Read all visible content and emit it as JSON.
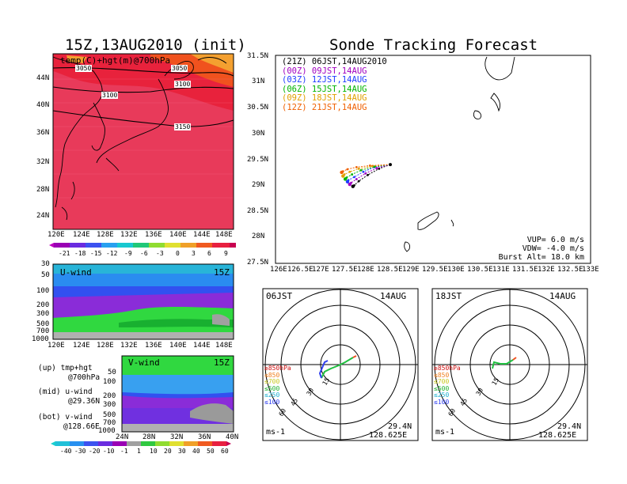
{
  "left_title": "15Z,13AUG2010 (init)",
  "right_title": "Sonde Tracking Forecast",
  "map_small": {
    "label": "temp(C)+hgt(m)@700hPa",
    "lat_ticks": [
      "44N",
      "40N",
      "36N",
      "32N",
      "28N",
      "24N"
    ],
    "lon_ticks": [
      "120E",
      "124E",
      "128E",
      "132E",
      "136E",
      "140E",
      "144E",
      "148E"
    ],
    "contours": [
      "3050",
      "3050",
      "3100",
      "3100",
      "3150"
    ]
  },
  "temp_colorbar": [
    "-21",
    "-18",
    "-15",
    "-12",
    "-9",
    "-6",
    "-3",
    "0",
    "3",
    "6",
    "9"
  ],
  "uwind": {
    "label": "U-wind",
    "time": "15Z",
    "p_ticks": [
      "30",
      "50",
      "100",
      "200",
      "300",
      "500",
      "700",
      "1000"
    ],
    "lon_ticks": [
      "120E",
      "124E",
      "128E",
      "132E",
      "136E",
      "140E",
      "144E",
      "148E"
    ]
  },
  "vwind": {
    "label": "V-wind",
    "time": "15Z",
    "p_ticks": [
      "50",
      "100",
      "200",
      "300",
      "500",
      "700",
      "1000"
    ],
    "lat_ticks": [
      "24N",
      "28N",
      "32N",
      "36N",
      "40N"
    ]
  },
  "side_notes": [
    [
      "(up) tmp+hgt",
      "@700hPa"
    ],
    [
      "(mid) u-wind",
      "@29.36N"
    ],
    [
      "(bot) v-wind",
      "@128.66E"
    ]
  ],
  "wind_colorbar": [
    "-40",
    "-30",
    "-20",
    "-10",
    "-1",
    "1",
    "10",
    "20",
    "30",
    "40",
    "50",
    "60"
  ],
  "track_map": {
    "lat_ticks": [
      "31.5N",
      "31N",
      "30.5N",
      "30N",
      "29.5N",
      "29N",
      "28.5N",
      "28N",
      "27.5N"
    ],
    "lon_ticks": [
      "126E",
      "126.5E",
      "127E",
      "127.5E",
      "128E",
      "128.5E",
      "129E",
      "129.5E",
      "130E",
      "130.5E",
      "131E",
      "131.5E",
      "132E",
      "132.5E",
      "133E"
    ],
    "legend": [
      {
        "text": "(21Z)  06JST,14AUG2010",
        "color": "#000000"
      },
      {
        "text": "(00Z)  09JST,14AUG",
        "color": "#a000c0"
      },
      {
        "text": "(03Z)  12JST,14AUG",
        "color": "#1e3cff"
      },
      {
        "text": "(06Z)  15JST,14AUG",
        "color": "#00b400"
      },
      {
        "text": "(09Z)  18JST,14AUG",
        "color": "#e0a000"
      },
      {
        "text": "(12Z)  21JST,14AUG",
        "color": "#f06000"
      }
    ],
    "params": [
      "VUP=  6.0  m/s",
      "VDW= -4.0  m/s",
      "Burst Alt=  18.0  km"
    ]
  },
  "hodo_left": {
    "time": "06JST",
    "date": "14AUG",
    "rings": [
      "15",
      "30",
      "45",
      "60"
    ],
    "levels": [
      "≥850hPa",
      "≤850",
      "≤700",
      "≤500",
      "≤250",
      "≤100"
    ],
    "unit": "ms-1",
    "lat": "29.4N",
    "lon": "128.625E"
  },
  "hodo_right": {
    "time": "18JST",
    "date": "14AUG",
    "rings": [
      "15",
      "30",
      "45",
      "60"
    ],
    "levels": [
      "≥850hPa",
      "≤850",
      "≤700",
      "≤500",
      "≤250",
      "≤100"
    ],
    "unit": "ms-1",
    "lat": "29.4N",
    "lon": "128.625E"
  },
  "chart_data": {
    "type": "line",
    "title": "Sonde Tracking Forecast",
    "xlim": [
      126,
      133
    ],
    "ylim": [
      27.5,
      31.5
    ],
    "burst_point": [
      128.55,
      29.4
    ],
    "series": [
      {
        "name": "(21Z)  06JST,14AUG2010",
        "color": "#000000",
        "x": [
          128.55,
          128.3,
          128.05,
          127.85,
          127.75,
          127.72
        ],
        "y": [
          29.4,
          29.32,
          29.2,
          29.08,
          29.0,
          28.98
        ]
      },
      {
        "name": "(00Z)  09JST,14AUG",
        "color": "#a000c0",
        "x": [
          128.55,
          128.25,
          128.0,
          127.8,
          127.68,
          127.65
        ],
        "y": [
          29.4,
          29.33,
          29.23,
          29.12,
          29.05,
          29.02
        ]
      },
      {
        "name": "(03Z)  12JST,14AUG",
        "color": "#1e3cff",
        "x": [
          128.55,
          128.2,
          127.95,
          127.75,
          127.62,
          127.6
        ],
        "y": [
          29.4,
          29.35,
          29.26,
          29.16,
          29.1,
          29.07
        ]
      },
      {
        "name": "(06Z)  15JST,14AUG",
        "color": "#00b400",
        "x": [
          128.55,
          128.2,
          127.9,
          127.7,
          127.58,
          127.55
        ],
        "y": [
          29.4,
          29.36,
          29.29,
          29.21,
          29.15,
          29.12
        ]
      },
      {
        "name": "(09Z)  18JST,14AUG",
        "color": "#e0a000",
        "x": [
          128.55,
          128.15,
          127.85,
          127.65,
          127.53,
          127.5
        ],
        "y": [
          29.4,
          29.37,
          29.32,
          29.26,
          29.21,
          29.18
        ]
      },
      {
        "name": "(12Z)  21JST,14AUG",
        "color": "#f06000",
        "x": [
          128.55,
          128.1,
          127.8,
          127.6,
          127.5,
          127.47
        ],
        "y": [
          29.4,
          29.38,
          29.35,
          29.31,
          29.27,
          29.25
        ]
      }
    ]
  }
}
